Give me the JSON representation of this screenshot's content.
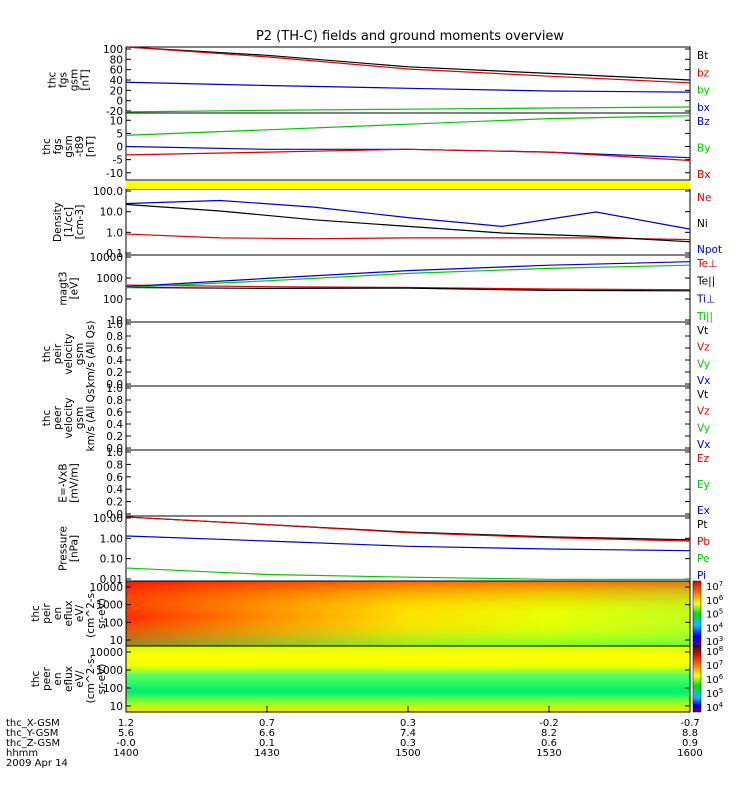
{
  "title": "P2 (TH-C) fields and ground moments overview",
  "x_axis": {
    "rows": [
      {
        "label": "thc_X-GSM",
        "values": [
          "1.2",
          "0.7",
          "0.3",
          "-0.2",
          "-0.7"
        ]
      },
      {
        "label": "thc_Y-GSM",
        "values": [
          "5.6",
          "6.6",
          "7.4",
          "8.2",
          "8.8"
        ]
      },
      {
        "label": "thc_Z-GSM",
        "values": [
          "-0.0",
          "0.1",
          "0.3",
          "0.6",
          "0.9"
        ]
      },
      {
        "label": "hhmm",
        "values": [
          "1400",
          "1430",
          "1500",
          "1530",
          "1600"
        ]
      }
    ],
    "date": "2009 Apr 14"
  },
  "colors": {
    "black": "#000000",
    "red": "#e00000",
    "green": "#00c800",
    "blue": "#0000d0",
    "yellow": "#ffff00"
  },
  "chart_data": [
    {
      "type": "line",
      "ylabel": [
        "thc",
        "fgs",
        "gsm",
        "[nT]"
      ],
      "ylim": [
        -20,
        100
      ],
      "ticks": [
        "100",
        "80",
        "60",
        "40",
        "20",
        "0",
        "-20"
      ],
      "x": [
        "1400",
        "1430",
        "1500",
        "1530",
        "1600"
      ],
      "series": [
        {
          "name": "Bt",
          "color": "#000000",
          "values": [
            125,
            85,
            64,
            52,
            40
          ]
        },
        {
          "name": "bz",
          "color": "#e00000",
          "values": [
            125,
            82,
            60,
            47,
            35
          ]
        },
        {
          "name": "by",
          "color": "#00c800",
          "values": [
            -18,
            -15,
            -13,
            -11,
            -9
          ]
        },
        {
          "name": "bx",
          "color": "#0000d0",
          "values": [
            36,
            30,
            25,
            20,
            18
          ]
        }
      ]
    },
    {
      "type": "line",
      "ylabel": [
        "thc",
        "fgs",
        "gsm",
        "-t89",
        "[nT]"
      ],
      "ylim": [
        -12,
        12
      ],
      "ticks": [
        "10",
        "5",
        "0",
        "-5",
        "-10"
      ],
      "x": [
        "1400",
        "1430",
        "1500",
        "1530",
        "1600"
      ],
      "series": [
        {
          "name": "Bz",
          "color": "#0000d0",
          "values": [
            0,
            -1,
            -1,
            -2,
            -4
          ]
        },
        {
          "name": "By",
          "color": "#00c800",
          "values": [
            4,
            6,
            8,
            10,
            11
          ]
        },
        {
          "name": "Bx",
          "color": "#e00000",
          "values": [
            -3,
            -2,
            -1,
            -2,
            -5
          ]
        }
      ]
    },
    {
      "type": "line",
      "log": true,
      "ylabel": [
        "Density",
        "[1/cc]",
        "[cm-3]"
      ],
      "ylim": [
        0.1,
        100
      ],
      "ticks": [
        "100.0",
        "10.0",
        "1.0",
        "0.1"
      ],
      "x": [
        "1400",
        "1420",
        "1440",
        "1500",
        "1520",
        "1540",
        "1600"
      ],
      "series": [
        {
          "name": "Ne",
          "color": "#e00000",
          "values": [
            0.9,
            0.6,
            0.55,
            0.6,
            0.6,
            0.6,
            0.5
          ]
        },
        {
          "name": "Ni",
          "color": "#000000",
          "values": [
            20,
            10,
            4,
            2,
            1,
            0.7,
            0.4
          ]
        },
        {
          "name": "Npot",
          "color": "#0000d0",
          "values": [
            22,
            30,
            15,
            5,
            2,
            9,
            1.5
          ]
        }
      ]
    },
    {
      "type": "line",
      "log": true,
      "ylabel": [
        "magt3",
        "[eV]"
      ],
      "ylim": [
        10,
        10000
      ],
      "ticks": [
        "10000",
        "1000",
        "100",
        "10"
      ],
      "x": [
        "1400",
        "1430",
        "1500",
        "1530",
        "1600"
      ],
      "series": [
        {
          "name": "Te⊥",
          "color": "#e00000",
          "values": [
            450,
            380,
            350,
            300,
            280
          ]
        },
        {
          "name": "Te||",
          "color": "#000000",
          "values": [
            350,
            320,
            330,
            260,
            250
          ]
        },
        {
          "name": "Ti⊥",
          "color": "#0000d0",
          "values": [
            380,
            900,
            2000,
            3500,
            5000
          ]
        },
        {
          "name": "Ti||",
          "color": "#00c800",
          "values": [
            350,
            700,
            1500,
            2500,
            3500
          ]
        }
      ]
    },
    {
      "type": "line",
      "ylabel": [
        "thc",
        "peir",
        "velocity",
        "gsm",
        "km/s (All Qs)"
      ],
      "ylim": [
        0.0,
        1.0
      ],
      "ticks": [
        "1.0",
        "0.8",
        "0.6",
        "0.4",
        "0.2",
        "0.0"
      ],
      "series": [
        {
          "name": "Vt",
          "color": "#000000",
          "values": []
        },
        {
          "name": "Vz",
          "color": "#e00000",
          "values": []
        },
        {
          "name": "Vy",
          "color": "#00c800",
          "values": []
        },
        {
          "name": "Vx",
          "color": "#0000d0",
          "values": []
        }
      ]
    },
    {
      "type": "line",
      "ylabel": [
        "thc",
        "peer",
        "velocity",
        "gsm",
        "km/s (All Qs)"
      ],
      "ylim": [
        0.0,
        1.0
      ],
      "ticks": [
        "1.0",
        "0.8",
        "0.6",
        "0.4",
        "0.2",
        "0.0"
      ],
      "series": [
        {
          "name": "Vt",
          "color": "#000000",
          "values": []
        },
        {
          "name": "Vz",
          "color": "#e00000",
          "values": []
        },
        {
          "name": "Vy",
          "color": "#00c800",
          "values": []
        },
        {
          "name": "Vx",
          "color": "#0000d0",
          "values": []
        }
      ]
    },
    {
      "type": "line",
      "ylabel": [
        "E=-VxB",
        "[mV/m]"
      ],
      "ylim": [
        0.0,
        1.0
      ],
      "ticks": [
        "1.0",
        "0.8",
        "0.6",
        "0.4",
        "0.2",
        "0.0"
      ],
      "series": [
        {
          "name": "Ez",
          "color": "#e00000",
          "values": []
        },
        {
          "name": "Ey",
          "color": "#00c800",
          "values": []
        },
        {
          "name": "Ex",
          "color": "#0000d0",
          "values": []
        }
      ]
    },
    {
      "type": "line",
      "log": true,
      "ylabel": [
        "Pressure",
        "[nPa]"
      ],
      "ylim": [
        0.01,
        10
      ],
      "ticks": [
        "10.00",
        "1.00",
        "0.10",
        "0.01"
      ],
      "x": [
        "1400",
        "1430",
        "1500",
        "1530",
        "1600"
      ],
      "series": [
        {
          "name": "Pt",
          "color": "#000000",
          "values": [
            9,
            4,
            1.8,
            1.1,
            0.8
          ]
        },
        {
          "name": "Pb",
          "color": "#e00000",
          "values": [
            9,
            4,
            1.7,
            1.0,
            0.7
          ]
        },
        {
          "name": "Pe",
          "color": "#00c800",
          "values": [
            0.04,
            0.02,
            0.015,
            0.012,
            0.012
          ]
        },
        {
          "name": "Pi",
          "color": "#0000d0",
          "values": [
            1.2,
            0.7,
            0.4,
            0.3,
            0.25
          ]
        }
      ]
    },
    {
      "type": "heatmap",
      "ylabel": [
        "thc",
        "peir",
        "en",
        "eflux",
        "eV/",
        "(cm^2-s-",
        "sr-eV)"
      ],
      "ticks": [
        "10000",
        "1000",
        "100",
        "10"
      ],
      "colorbar": [
        "10^7",
        "10^6",
        "10^5",
        "10^4",
        "10^3"
      ]
    },
    {
      "type": "heatmap",
      "ylabel": [
        "thc",
        "peer",
        "en",
        "eflux",
        "eV/",
        "(cm^2-s-",
        "sr-eV)"
      ],
      "ticks": [
        "10000",
        "1000",
        "100",
        "10"
      ],
      "colorbar": [
        "10^8",
        "10^7",
        "10^6",
        "10^5",
        "10^4"
      ]
    }
  ]
}
